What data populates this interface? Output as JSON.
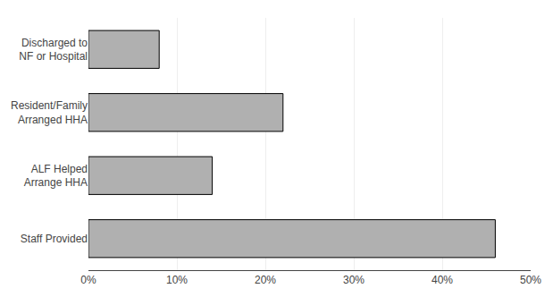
{
  "chart_data": {
    "type": "bar",
    "orientation": "horizontal",
    "categories": [
      "Staff Provided",
      "ALF Helped\nArrange HHA",
      "Resident/Family\nArranged HHA",
      "Discharged to\nNF or Hospital"
    ],
    "values": [
      0.46,
      0.14,
      0.22,
      0.08
    ],
    "color": "#b0b0b0",
    "xlim": [
      0,
      0.5
    ],
    "xticks": [
      {
        "value": 0.0,
        "label": "0%"
      },
      {
        "value": 0.1,
        "label": "10%"
      },
      {
        "value": 0.2,
        "label": "20%"
      },
      {
        "value": 0.3,
        "label": "30%"
      },
      {
        "value": 0.4,
        "label": "40%"
      },
      {
        "value": 0.5,
        "label": "50%"
      }
    ],
    "grid": true
  }
}
